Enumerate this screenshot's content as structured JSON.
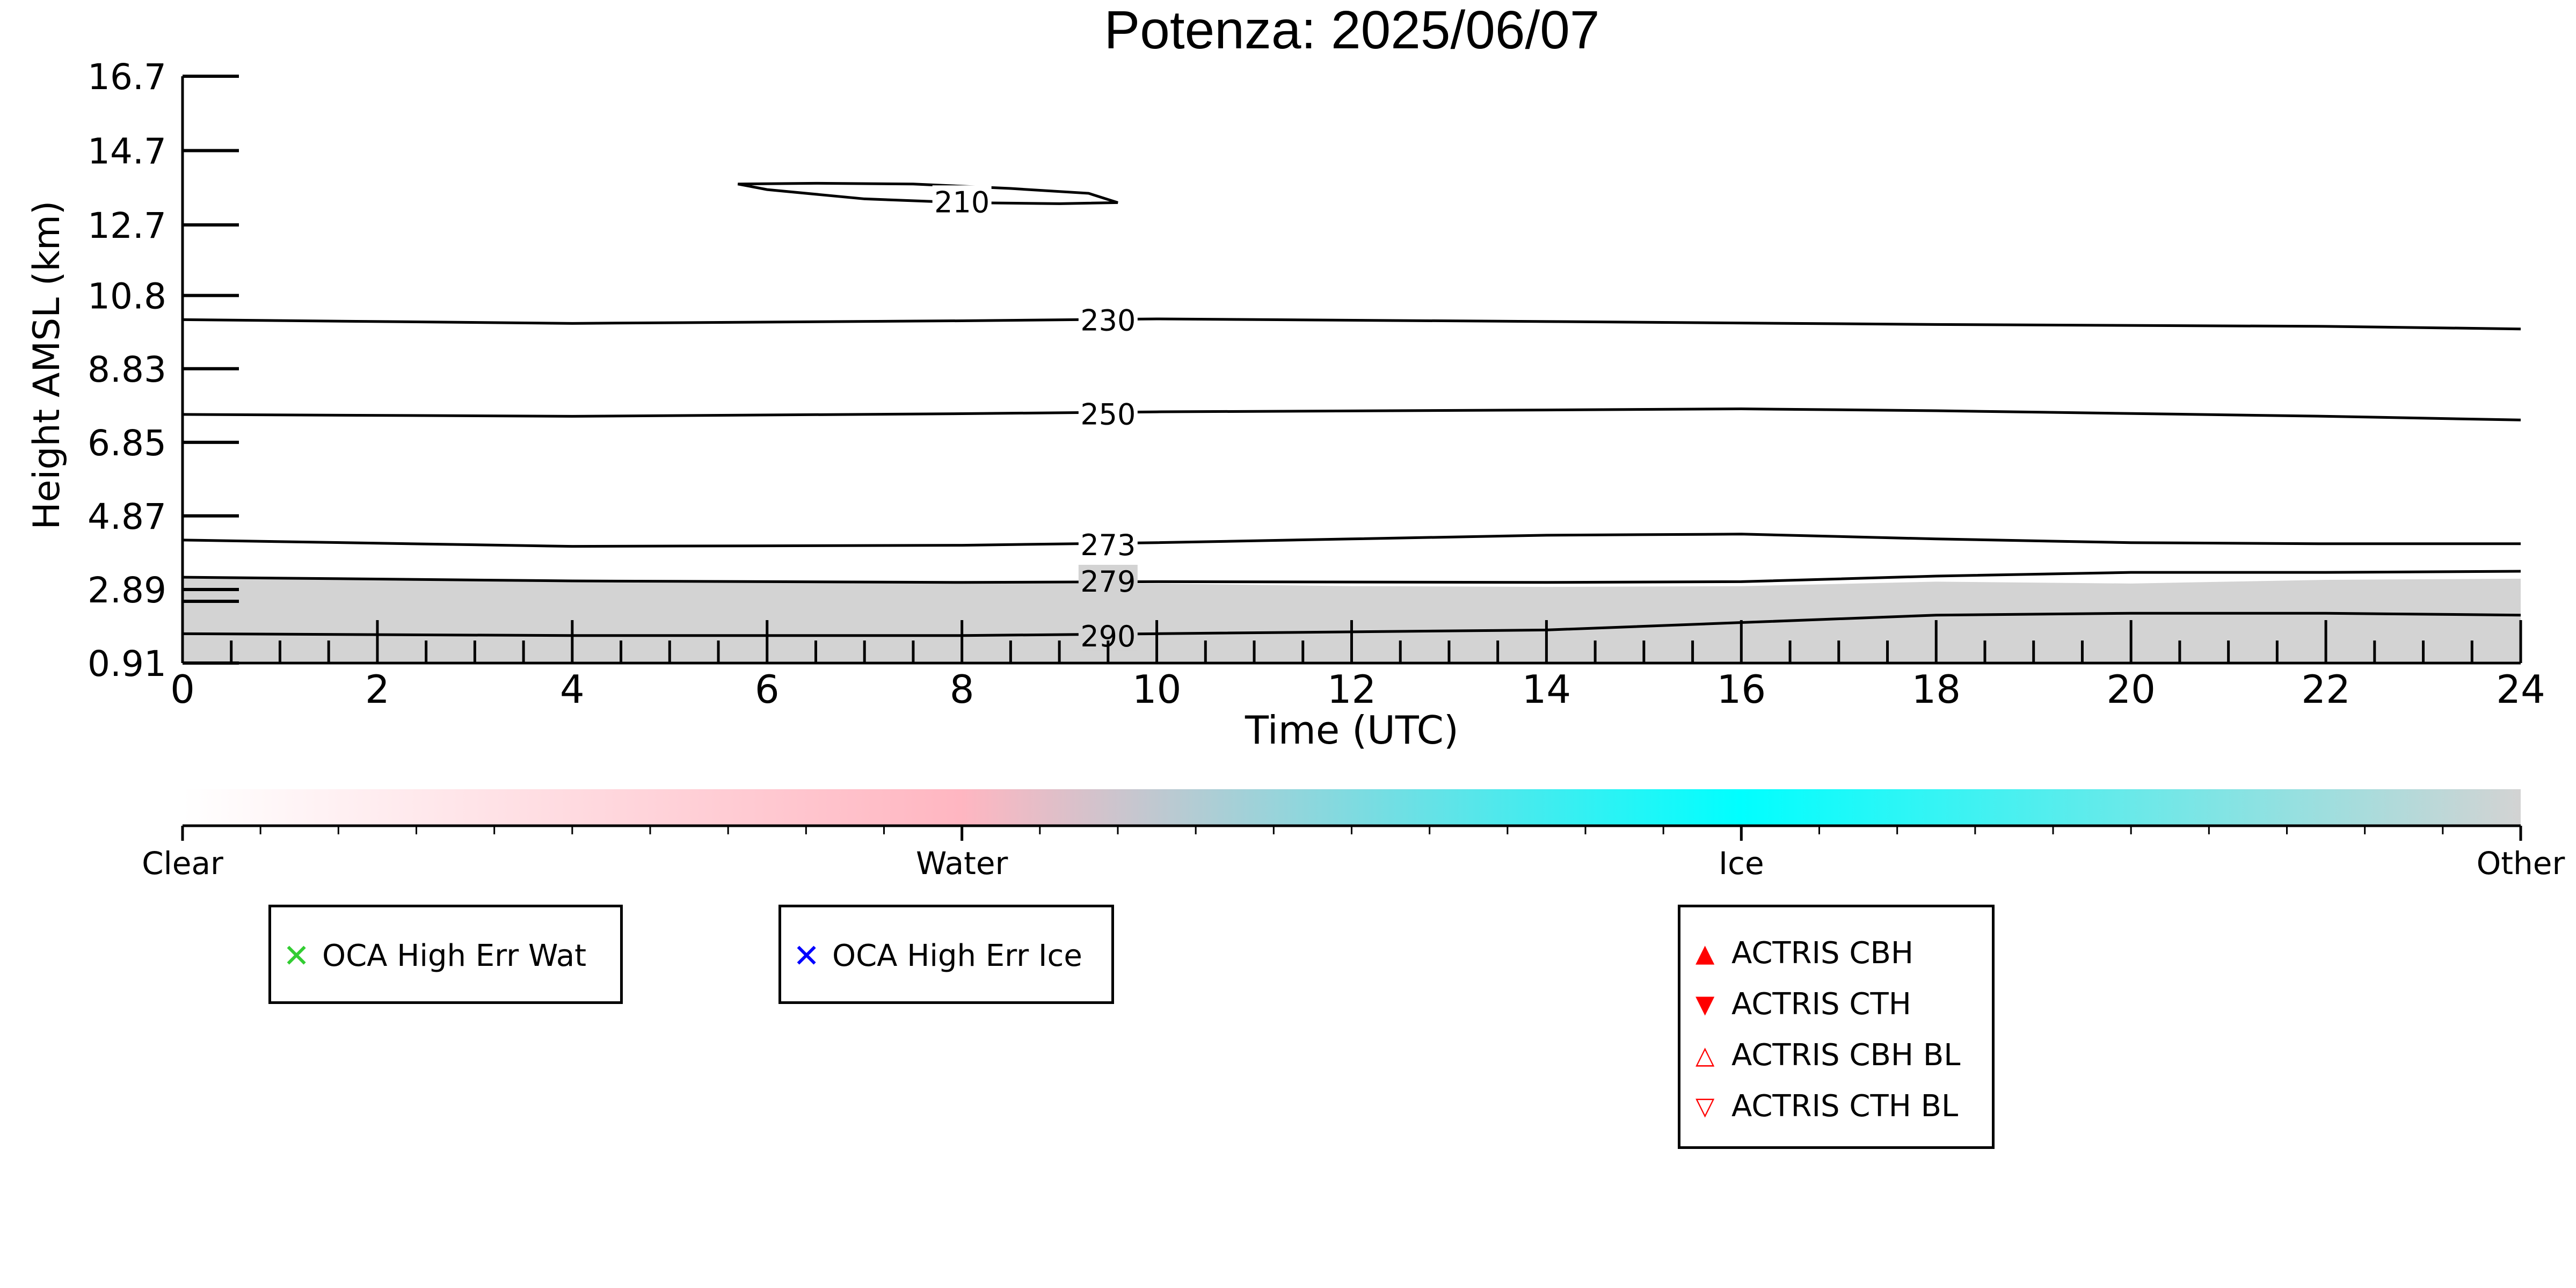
{
  "chart_data": {
    "type": "contour",
    "title": "Potenza: 2025/06/07",
    "xlabel": "Time (UTC)",
    "ylabel": "Height AMSL (km)",
    "xlim": [
      0,
      24
    ],
    "ylim": [
      0.91,
      16.7
    ],
    "x_ticks": [
      0,
      2,
      4,
      6,
      8,
      10,
      12,
      14,
      16,
      18,
      20,
      22,
      24
    ],
    "y_ticks": [
      "0.91",
      "2.89",
      "4.87",
      "6.85",
      "8.83",
      "10.8",
      "12.7",
      "14.7",
      "16.7"
    ],
    "y_tick_values": [
      0.91,
      2.89,
      4.87,
      6.85,
      8.83,
      10.8,
      12.7,
      14.7,
      16.7
    ],
    "grey_fill": {
      "color": "#d3d3d3",
      "top": [
        [
          0,
          3.18
        ],
        [
          4,
          3.1
        ],
        [
          8,
          3.05
        ],
        [
          10,
          3.05
        ],
        [
          12,
          2.98
        ],
        [
          14,
          2.96
        ],
        [
          16,
          2.98
        ],
        [
          18,
          3.1
        ],
        [
          20,
          3.05
        ],
        [
          22,
          3.15
        ],
        [
          24,
          3.18
        ]
      ]
    },
    "contours": [
      {
        "label": "210",
        "closed": true,
        "label_at": [
          8.0,
          13.33
        ],
        "points": [
          [
            5.7,
            13.8
          ],
          [
            6.5,
            13.82
          ],
          [
            7.5,
            13.8
          ],
          [
            8.5,
            13.68
          ],
          [
            9.3,
            13.55
          ],
          [
            9.6,
            13.3
          ],
          [
            9.0,
            13.27
          ],
          [
            8.0,
            13.3
          ],
          [
            7.0,
            13.4
          ],
          [
            6.0,
            13.65
          ],
          [
            5.7,
            13.8
          ]
        ]
      },
      {
        "label": "230",
        "closed": false,
        "label_at": [
          9.5,
          10.15
        ],
        "points": [
          [
            0,
            10.15
          ],
          [
            4,
            10.05
          ],
          [
            8,
            10.12
          ],
          [
            10,
            10.17
          ],
          [
            14,
            10.1
          ],
          [
            18,
            10.02
          ],
          [
            22,
            9.97
          ],
          [
            24,
            9.9
          ]
        ]
      },
      {
        "label": "250",
        "closed": false,
        "label_at": [
          9.5,
          7.62
        ],
        "points": [
          [
            0,
            7.6
          ],
          [
            4,
            7.55
          ],
          [
            8,
            7.62
          ],
          [
            10,
            7.67
          ],
          [
            14,
            7.72
          ],
          [
            16,
            7.75
          ],
          [
            18,
            7.7
          ],
          [
            22,
            7.55
          ],
          [
            24,
            7.45
          ]
        ]
      },
      {
        "label": "273",
        "closed": false,
        "label_at": [
          9.5,
          4.1
        ],
        "points": [
          [
            0,
            4.22
          ],
          [
            4,
            4.05
          ],
          [
            8,
            4.08
          ],
          [
            10,
            4.15
          ],
          [
            12,
            4.25
          ],
          [
            14,
            4.35
          ],
          [
            16,
            4.38
          ],
          [
            18,
            4.25
          ],
          [
            20,
            4.15
          ],
          [
            22,
            4.12
          ],
          [
            24,
            4.12
          ]
        ]
      },
      {
        "label": "279",
        "closed": false,
        "label_at": [
          9.5,
          3.12
        ],
        "points": [
          [
            0,
            3.22
          ],
          [
            4,
            3.12
          ],
          [
            8,
            3.08
          ],
          [
            10,
            3.1
          ],
          [
            14,
            3.08
          ],
          [
            16,
            3.1
          ],
          [
            18,
            3.25
          ],
          [
            20,
            3.35
          ],
          [
            22,
            3.35
          ],
          [
            24,
            3.38
          ]
        ]
      },
      {
        "label": "290",
        "closed": false,
        "label_at": [
          9.5,
          1.65
        ],
        "points": [
          [
            0,
            1.7
          ],
          [
            4,
            1.65
          ],
          [
            8,
            1.65
          ],
          [
            10,
            1.7
          ],
          [
            14,
            1.8
          ],
          [
            16,
            2.0
          ],
          [
            18,
            2.2
          ],
          [
            20,
            2.25
          ],
          [
            22,
            2.25
          ],
          [
            24,
            2.2
          ]
        ]
      }
    ],
    "colorbar": {
      "labels": [
        "Clear",
        "Water",
        "Ice",
        "Other"
      ],
      "stops": [
        {
          "pos": 0,
          "color": "#ffffff"
        },
        {
          "pos": 0.333,
          "color": "#ffb6c1"
        },
        {
          "pos": 0.666,
          "color": "#00ffff"
        },
        {
          "pos": 1,
          "color": "#d3d3d3"
        }
      ]
    },
    "legends": [
      {
        "items": [
          {
            "label": "OCA High Err Wat",
            "marker": "✕",
            "color": "#32cd32"
          }
        ]
      },
      {
        "items": [
          {
            "label": "OCA High Err Ice",
            "marker": "✕",
            "color": "#0000ff"
          }
        ]
      },
      {
        "items": [
          {
            "label": "ACTRIS CBH",
            "marker": "▲",
            "color": "#ff0000"
          },
          {
            "label": "ACTRIS CTH",
            "marker": "▼",
            "color": "#ff0000"
          },
          {
            "label": "ACTRIS CBH BL",
            "marker": "△",
            "color": "#ff0000"
          },
          {
            "label": "ACTRIS CTH BL",
            "marker": "▽",
            "color": "#ff0000"
          }
        ]
      }
    ]
  }
}
